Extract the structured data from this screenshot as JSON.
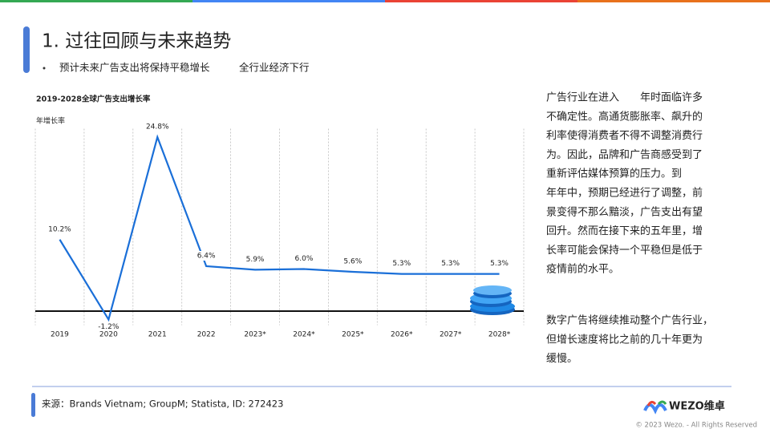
{
  "header": {
    "title": "1. 过往回顾与未来趋势",
    "bullets": [
      "预计未来广告支出将保持平稳增长",
      "全行业经济下行"
    ]
  },
  "chart_data": {
    "type": "line",
    "title": "2019-2028全球广告支出增长率",
    "y_label": "年增长率",
    "categories": [
      "2019",
      "2020",
      "2021",
      "2022",
      "2023*",
      "2024*",
      "2025*",
      "2026*",
      "2027*",
      "2028*"
    ],
    "values": [
      10.2,
      -1.2,
      24.8,
      6.4,
      5.9,
      6.0,
      5.6,
      5.3,
      5.3,
      5.3
    ],
    "value_labels": [
      "10.2%",
      "-1.2%",
      "24.8%",
      "6.4%",
      "5.9%",
      "6.0%",
      "5.6%",
      "5.3%",
      "5.3%",
      "5.3%"
    ],
    "color": "#1a6fd8",
    "ylim": [
      -2,
      26
    ],
    "grid": true
  },
  "text": {
    "paragraphs": [
      [
        "广告行业在进入　　年时面临许多",
        "不确定性。高通货膨胀率、飙升的",
        "利率使得消费者不得不调整消费行",
        "为。因此，品牌和广告商感受到了",
        "重新评估媒体预算的压力。到",
        "年年中，预期已经进行了调整，前",
        "景变得不那么黯淡，广告支出有望",
        "回升。然而在接下来的五年里，增",
        "长率可能会保持一个平稳但是低于",
        "疫情前的水平。"
      ],
      [
        "数字广告将继续推动整个广告行业，",
        "但增长速度将比之前的几十年更为",
        "缓慢。"
      ]
    ]
  },
  "footer": {
    "source": "来源：Brands Vietnam; GroupM; Statista, ID: 272423",
    "logo": "WEZO维卓",
    "copyright": "© 2023 Wezo. - All Rights Reserved"
  }
}
